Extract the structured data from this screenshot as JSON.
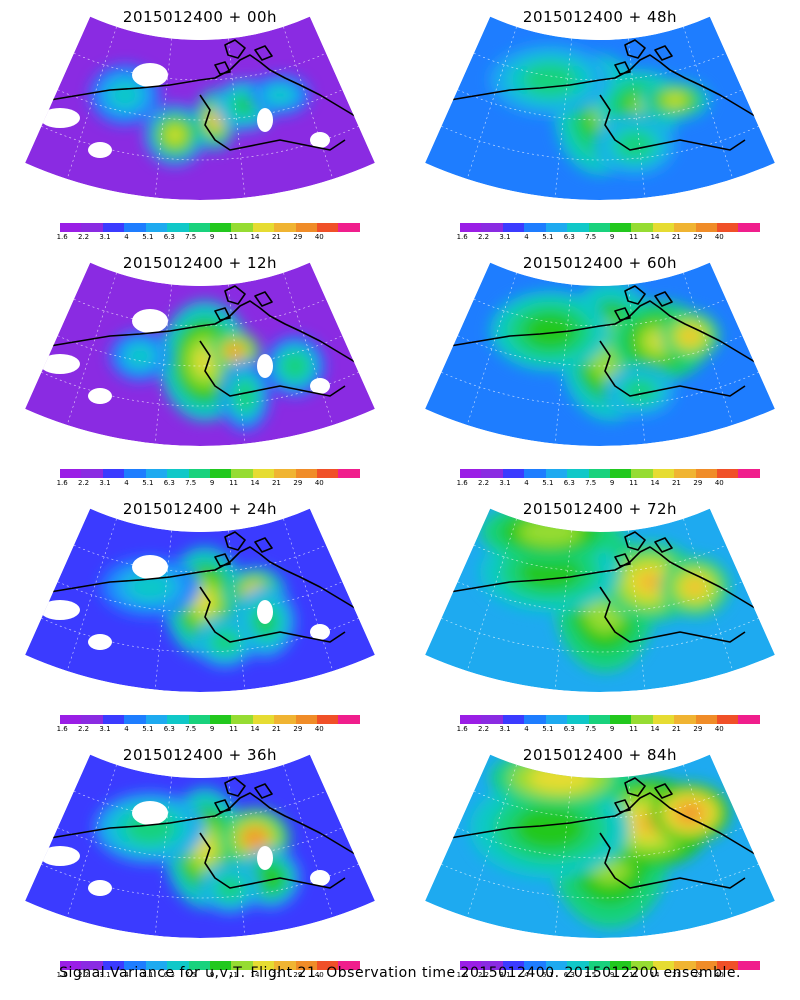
{
  "panels": [
    {
      "title": "2015012400 + 00h",
      "field": {
        "base": 0.8,
        "white": true,
        "blobs": [
          [
            175,
            135,
            30,
            30,
            9
          ],
          [
            215,
            120,
            20,
            30,
            10
          ],
          [
            245,
            105,
            30,
            25,
            7
          ],
          [
            125,
            95,
            35,
            30,
            5
          ],
          [
            280,
            95,
            30,
            20,
            5
          ]
        ]
      }
    },
    {
      "title": "2015012400 + 48h",
      "field": {
        "base": 2.5,
        "white": false,
        "blobs": [
          [
            200,
            115,
            45,
            60,
            8
          ],
          [
            240,
            105,
            45,
            35,
            8
          ],
          [
            275,
            100,
            35,
            20,
            9
          ],
          [
            150,
            80,
            60,
            35,
            6
          ],
          [
            235,
            145,
            40,
            30,
            6
          ]
        ]
      }
    },
    {
      "title": "2015012400 + 12h",
      "field": {
        "base": 1.0,
        "white": true,
        "blobs": [
          [
            205,
            115,
            45,
            60,
            9
          ],
          [
            235,
            105,
            25,
            20,
            11
          ],
          [
            245,
            150,
            25,
            35,
            6
          ],
          [
            295,
            120,
            30,
            30,
            6
          ],
          [
            140,
            110,
            30,
            25,
            5
          ]
        ]
      }
    },
    {
      "title": "2015012400 + 60h",
      "field": {
        "base": 3.0,
        "white": false,
        "blobs": [
          [
            210,
            105,
            50,
            70,
            8
          ],
          [
            260,
            95,
            50,
            40,
            9
          ],
          [
            290,
            90,
            30,
            25,
            10
          ],
          [
            150,
            85,
            60,
            40,
            7
          ],
          [
            240,
            145,
            35,
            25,
            6
          ]
        ]
      }
    },
    {
      "title": "2015012400 + 24h",
      "field": {
        "base": 1.5,
        "white": true,
        "blobs": [
          [
            205,
            110,
            40,
            55,
            9
          ],
          [
            255,
            100,
            30,
            25,
            10
          ],
          [
            265,
            130,
            30,
            35,
            7
          ],
          [
            225,
            150,
            30,
            25,
            6
          ],
          [
            150,
            95,
            50,
            30,
            5
          ]
        ]
      }
    },
    {
      "title": "2015012400 + 72h",
      "field": {
        "base": 3.5,
        "white": false,
        "blobs": [
          [
            205,
            110,
            50,
            70,
            8
          ],
          [
            250,
            90,
            50,
            40,
            10
          ],
          [
            295,
            95,
            35,
            30,
            10
          ],
          [
            150,
            80,
            70,
            40,
            7
          ],
          [
            150,
            40,
            70,
            30,
            8
          ]
        ]
      }
    },
    {
      "title": "2015012400 + 36h",
      "field": {
        "base": 2.0,
        "white": true,
        "blobs": [
          [
            205,
            110,
            40,
            60,
            9
          ],
          [
            255,
            100,
            35,
            30,
            11
          ],
          [
            270,
            140,
            30,
            30,
            7
          ],
          [
            150,
            90,
            55,
            35,
            6
          ],
          [
            230,
            150,
            30,
            25,
            6
          ]
        ]
      }
    },
    {
      "title": "2015012400 + 84h",
      "field": {
        "base": 4.0,
        "white": false,
        "blobs": [
          [
            210,
            110,
            60,
            80,
            8
          ],
          [
            250,
            85,
            60,
            45,
            10
          ],
          [
            290,
            75,
            40,
            30,
            11
          ],
          [
            150,
            90,
            80,
            50,
            7
          ],
          [
            160,
            40,
            70,
            30,
            9
          ]
        ]
      }
    }
  ],
  "colorbar": {
    "ticks": [
      "1.6",
      "2.2",
      "3.1",
      "4",
      "5.1",
      "6.3",
      "7.5",
      "9",
      "11",
      "14",
      "21",
      "29",
      "40"
    ],
    "colors": [
      "#9a1ee6",
      "#8a2be2",
      "#3b3bff",
      "#1e7dff",
      "#1eaaf0",
      "#10c8c8",
      "#19d27d",
      "#22c81e",
      "#96dc32",
      "#e6dc32",
      "#f0b432",
      "#f08c28",
      "#f05028",
      "#f01e8c"
    ]
  },
  "footer": {
    "caption": "Signal Variance for u,v,T. Flight 21. Observation time 2015012400. 2015012200 ensemble."
  }
}
